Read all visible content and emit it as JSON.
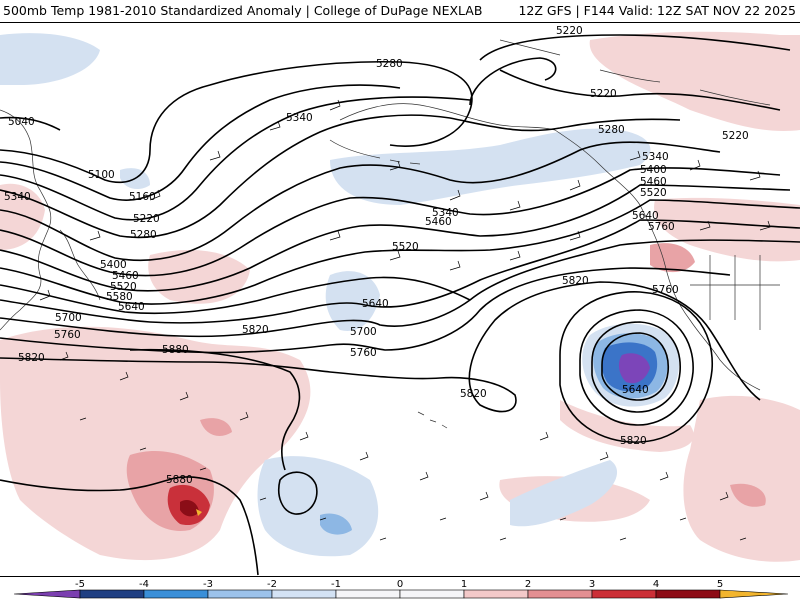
{
  "header": {
    "left": "500mb Temp 1981-2010 Standardized Anomaly | College of DuPage NEXLAB",
    "right": "12Z GFS | F144 Valid: 12Z SAT NOV 22 2025"
  },
  "colors": {
    "warm_light": "#f4d6d6",
    "warm_mid": "#e8a3a6",
    "warm_strong": "#c9303a",
    "warm_deep": "#8b0d17",
    "cold_light": "#d4e1f1",
    "cold_mid": "#8db7e4",
    "cold_strong": "#3b74c8",
    "cold_deep": "#7c45b9"
  },
  "contour_labels": [
    "5040",
    "5100",
    "5160",
    "5220",
    "5220",
    "5220",
    "5220",
    "5280",
    "5280",
    "5280",
    "5340",
    "5340",
    "5340",
    "5340",
    "5400",
    "5400",
    "5460",
    "5460",
    "5460",
    "5520",
    "5520",
    "5520",
    "5580",
    "5640",
    "5640",
    "5640",
    "5640",
    "5700",
    "5700",
    "5760",
    "5760",
    "5760",
    "5760",
    "5820",
    "5820",
    "5820",
    "5820",
    "5820",
    "5880",
    "5880"
  ],
  "colorbar": {
    "ticks": [
      "-5",
      "-4",
      "-3",
      "-2",
      "-1",
      "0",
      "1",
      "2",
      "3",
      "4",
      "5"
    ],
    "segments": [
      "#7b3fb0",
      "#1f3f82",
      "#3a8fd8",
      "#9cc2ea",
      "#d3e2f4",
      "#f5f5f8",
      "#f5f5f8",
      "#f3c9c9",
      "#e38f92",
      "#cc2f37",
      "#8d0c16",
      "#f2b52e"
    ]
  }
}
